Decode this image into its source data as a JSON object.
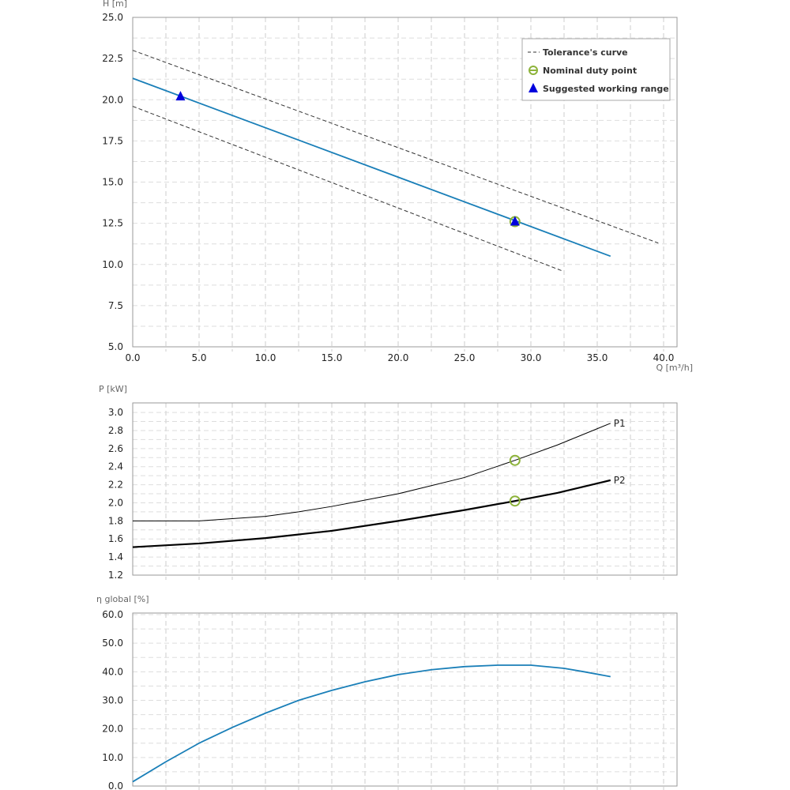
{
  "chart_data": [
    {
      "type": "line",
      "title": "",
      "xlabel": "Q [m³/h]",
      "ylabel": "H [m]",
      "xlim": [
        0,
        41
      ],
      "ylim": [
        5,
        25
      ],
      "xticks": [
        "0.0",
        "5.0",
        "10.0",
        "15.0",
        "20.0",
        "25.0",
        "30.0",
        "35.0",
        "40.0"
      ],
      "yticks": [
        "5.0",
        "7.5",
        "10.0",
        "12.5",
        "15.0",
        "17.5",
        "20.0",
        "22.5",
        "25.0"
      ],
      "grid": true,
      "legend_position": "top-right",
      "legend": [
        "Tolerance's curve",
        "Nominal duty point",
        "Suggested working range"
      ],
      "series": [
        {
          "name": "H curve",
          "color": "#1a7fb8",
          "x": [
            0,
            36
          ],
          "y": [
            21.3,
            10.5
          ]
        },
        {
          "name": "Tolerance upper",
          "color": "#333333",
          "dashed": true,
          "x": [
            0,
            39.6
          ],
          "y": [
            23.0,
            11.3
          ]
        },
        {
          "name": "Tolerance lower",
          "color": "#333333",
          "dashed": true,
          "x": [
            0,
            32.4
          ],
          "y": [
            19.6,
            9.6
          ]
        }
      ],
      "duty_point": {
        "x": 28.8,
        "y": 12.6,
        "color": "#8db33a"
      },
      "working_range": {
        "x": [
          3.6,
          28.8
        ],
        "y": [
          20.2,
          12.6
        ],
        "color": "#0000dd"
      }
    },
    {
      "type": "line",
      "ylabel": "P [kW]",
      "xlim": [
        0,
        41
      ],
      "ylim": [
        1.2,
        3.1
      ],
      "yticks": [
        "1.2",
        "1.4",
        "1.6",
        "1.8",
        "2.0",
        "2.2",
        "2.4",
        "2.6",
        "2.8",
        "3.0"
      ],
      "grid": true,
      "series": [
        {
          "name": "P1",
          "width": 1,
          "x": [
            0,
            5,
            10,
            12.5,
            15,
            20,
            25,
            28.8,
            32,
            36
          ],
          "y": [
            1.8,
            1.8,
            1.85,
            1.9,
            1.96,
            2.1,
            2.28,
            2.47,
            2.64,
            2.88
          ]
        },
        {
          "name": "P2",
          "width": 2.2,
          "x": [
            0,
            5,
            10,
            15,
            20,
            25,
            28.8,
            32,
            36
          ],
          "y": [
            1.51,
            1.55,
            1.61,
            1.69,
            1.8,
            1.92,
            2.02,
            2.11,
            2.25
          ]
        }
      ],
      "duty_points": [
        {
          "x": 28.8,
          "y": 2.47
        },
        {
          "x": 28.8,
          "y": 2.02
        }
      ]
    },
    {
      "type": "line",
      "ylabel": "η global [%]",
      "xlim": [
        0,
        41
      ],
      "ylim": [
        0,
        60
      ],
      "yticks": [
        "0.0",
        "10.0",
        "20.0",
        "30.0",
        "40.0",
        "50.0",
        "60.0"
      ],
      "grid": true,
      "series": [
        {
          "name": "Efficiency",
          "color": "#1a7fb8",
          "x": [
            0,
            2.5,
            5,
            7.5,
            10,
            12.5,
            15,
            17.5,
            20,
            22.5,
            25,
            27.5,
            30,
            32.5,
            34,
            36
          ],
          "y": [
            1.5,
            8.5,
            15,
            20.5,
            25.5,
            30,
            33.5,
            36.5,
            39,
            40.7,
            41.8,
            42.3,
            42.3,
            41.2,
            40,
            38.3
          ]
        }
      ]
    }
  ]
}
